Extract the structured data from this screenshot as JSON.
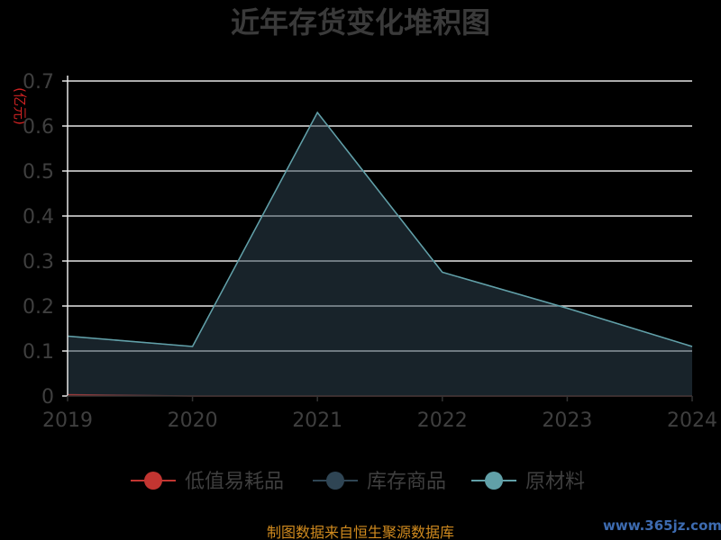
{
  "chart_data": {
    "type": "area",
    "title": "近年存货变化堆积图",
    "unit": "(亿元)",
    "x": [
      "2019",
      "2020",
      "2021",
      "2022",
      "2023",
      "2024"
    ],
    "ylim": [
      0,
      0.7
    ],
    "yticks": [
      "0",
      "0.1",
      "0.2",
      "0.3",
      "0.4",
      "0.5",
      "0.6",
      "0.7"
    ],
    "grid": true,
    "stacked": true,
    "legend_position": "bottom",
    "series": [
      {
        "name": "低值易耗品",
        "color": "#c23531",
        "values": [
          0.003,
          0,
          0,
          0,
          0,
          0
        ]
      },
      {
        "name": "库存商品",
        "color": "#2f4554",
        "values": [
          0.13,
          0.11,
          0.63,
          0.275,
          0.195,
          0.11
        ]
      },
      {
        "name": "原材料",
        "color": "#61a0a8",
        "values": [
          0,
          0,
          0,
          0,
          0,
          0
        ]
      }
    ]
  },
  "footer": {
    "source": "制图数据来自恒生聚源数据库",
    "watermark": "www.365jz.com"
  }
}
